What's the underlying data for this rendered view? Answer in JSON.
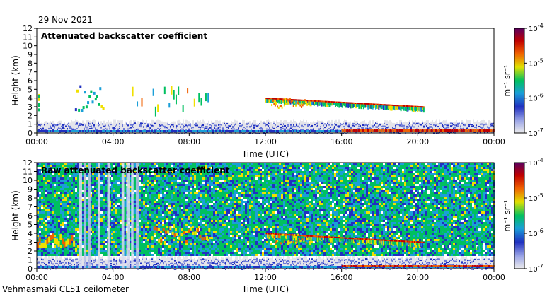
{
  "header": {
    "date": "29 Nov 2021"
  },
  "footer": {
    "instrument": "Vehmasmaki CL51 ceilometer"
  },
  "colors": {
    "scale": [
      "#e6e6e6",
      "#2030c0",
      "#1a9fd8",
      "#00c060",
      "#f0e000",
      "#f06000",
      "#c00000",
      "#5a0060"
    ]
  },
  "chart_data": [
    {
      "type": "heatmap",
      "title": "Attenuated backscatter coefficient",
      "xlabel": "Time (UTC)",
      "ylabel": "Height (km)",
      "xlim": [
        0,
        24
      ],
      "ylim": [
        0,
        12
      ],
      "xticks": [
        "00:00",
        "04:00",
        "08:00",
        "12:00",
        "16:00",
        "20:00",
        "00:00"
      ],
      "yticks": [
        "0",
        "1",
        "2",
        "3",
        "4",
        "5",
        "6",
        "7",
        "8",
        "9",
        "10",
        "11",
        "12"
      ],
      "colorbar": {
        "label": "m-1 sr-1",
        "label_display": "m⁻¹ sr⁻¹",
        "scale": "log",
        "range": [
          1e-07,
          0.0001
        ],
        "ticks": [
          "10-7",
          "10-6",
          "10-5",
          "10-4"
        ]
      },
      "features": [
        {
          "name": "cloud layer",
          "t_start": 12.0,
          "t_end": 20.3,
          "h_start": 3.9,
          "h_end": 2.9
        },
        {
          "name": "early clouds",
          "t_start": 2.0,
          "t_end": 3.5,
          "h_start": 2.6,
          "h_end": 5.6
        },
        {
          "name": "scattered clouds",
          "t_start": 5.0,
          "t_end": 9.0,
          "h_start": 3.0,
          "h_end": 5.4
        },
        {
          "name": "surface layer",
          "t_start": 0.0,
          "t_end": 24.0,
          "h_start": 0.0,
          "h_end": 1.3
        }
      ]
    },
    {
      "type": "heatmap",
      "title": "Raw attenuated backscatter coefficient",
      "xlabel": "Time (UTC)",
      "ylabel": "Height (km)",
      "xlim": [
        0,
        24
      ],
      "ylim": [
        0,
        12
      ],
      "xticks": [
        "00:00",
        "04:00",
        "08:00",
        "12:00",
        "16:00",
        "20:00",
        "00:00"
      ],
      "yticks": [
        "0",
        "1",
        "2",
        "3",
        "4",
        "5",
        "6",
        "7",
        "8",
        "9",
        "10",
        "11",
        "12"
      ],
      "colorbar": {
        "label": "m-1 sr-1",
        "label_display": "m⁻¹ sr⁻¹",
        "scale": "log",
        "range": [
          1e-07,
          0.0001
        ],
        "ticks": [
          "10-7",
          "10-6",
          "10-5",
          "10-4"
        ]
      },
      "features": [
        {
          "name": "noise field",
          "t_start": 0.0,
          "t_end": 24.0,
          "h_start": 1.5,
          "h_end": 12.0
        },
        {
          "name": "cloud layer",
          "t_start": 12.0,
          "t_end": 20.3,
          "h_start": 3.9,
          "h_end": 2.9
        },
        {
          "name": "low cloud",
          "t_start": 0.0,
          "t_end": 2.0,
          "h_start": 2.9,
          "h_end": 4.0
        },
        {
          "name": "precipitation streaks",
          "t_start": 2.2,
          "t_end": 5.3,
          "h_start": 0.0,
          "h_end": 12.0
        }
      ]
    }
  ]
}
